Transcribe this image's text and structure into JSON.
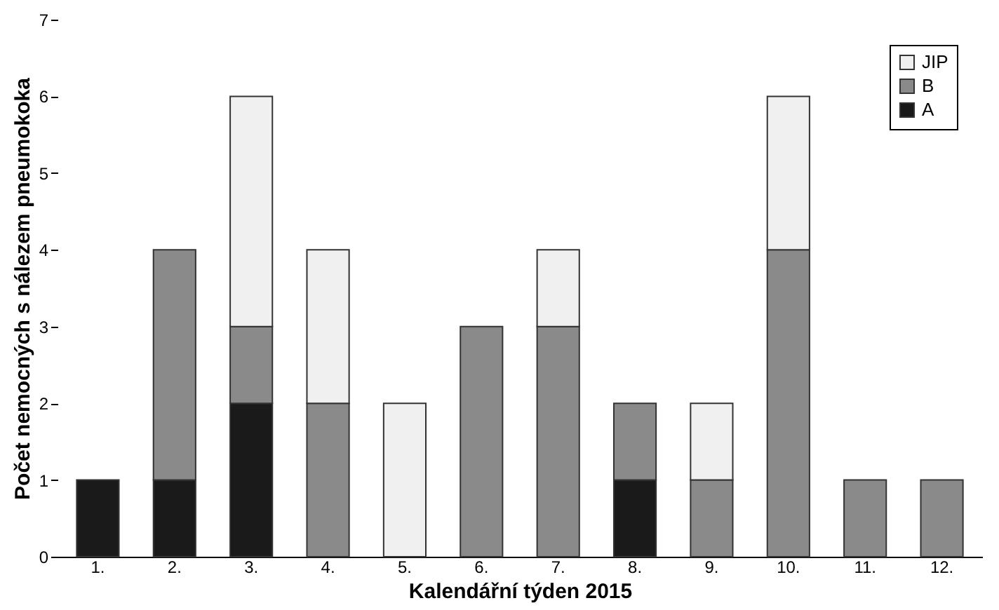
{
  "chart_data": {
    "type": "bar",
    "stacked": true,
    "xlabel": "Kalendářní týden 2015",
    "ylabel": "Počet nemocných s nálezem pneumokoka",
    "categories": [
      "1.",
      "2.",
      "3.",
      "4.",
      "5.",
      "6.",
      "7.",
      "8.",
      "9.",
      "10.",
      "11.",
      "12."
    ],
    "series": [
      {
        "name": "A",
        "color": "#1a1a1a",
        "values": [
          1,
          1,
          2,
          null,
          null,
          null,
          null,
          1,
          null,
          null,
          null,
          null
        ]
      },
      {
        "name": "B",
        "color": "#8a8a8a",
        "values": [
          null,
          3,
          1,
          2,
          null,
          3,
          3,
          1,
          1,
          4,
          1,
          1
        ]
      },
      {
        "name": "JIP",
        "color": "#f0f0f0",
        "values": [
          null,
          null,
          3,
          2,
          2,
          null,
          1,
          null,
          1,
          2,
          null,
          null
        ]
      }
    ],
    "ylim": [
      0,
      7
    ],
    "yticks": [
      0,
      1,
      2,
      3,
      4,
      5,
      6,
      7
    ],
    "grid": false,
    "legend": "top right"
  }
}
